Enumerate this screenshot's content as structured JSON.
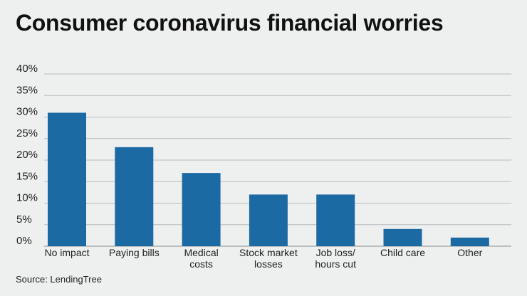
{
  "title": "Consumer coronavirus financial worries",
  "source": "Source: LendingTree",
  "colors": {
    "bar": "#1c6aa4",
    "grid": "#b8bcbc",
    "axis": "#8a8e8e",
    "background": "#eef0f0"
  },
  "chart_data": {
    "type": "bar",
    "title": "Consumer coronavirus financial worries",
    "categories": [
      [
        "No impact"
      ],
      [
        "Paying bills"
      ],
      [
        "Medical",
        "costs"
      ],
      [
        "Stock market",
        "losses"
      ],
      [
        "Job loss/",
        "hours cut"
      ],
      [
        "Child care"
      ],
      [
        "Other"
      ]
    ],
    "values": [
      31,
      23,
      17,
      12,
      12,
      4,
      2
    ],
    "unit": "%",
    "ylim": [
      0,
      40
    ],
    "yticks": [
      "0%",
      "5%",
      "10%",
      "15%",
      "20%",
      "25%",
      "30%",
      "35%",
      "40%"
    ],
    "grid": true,
    "legend": "none"
  }
}
